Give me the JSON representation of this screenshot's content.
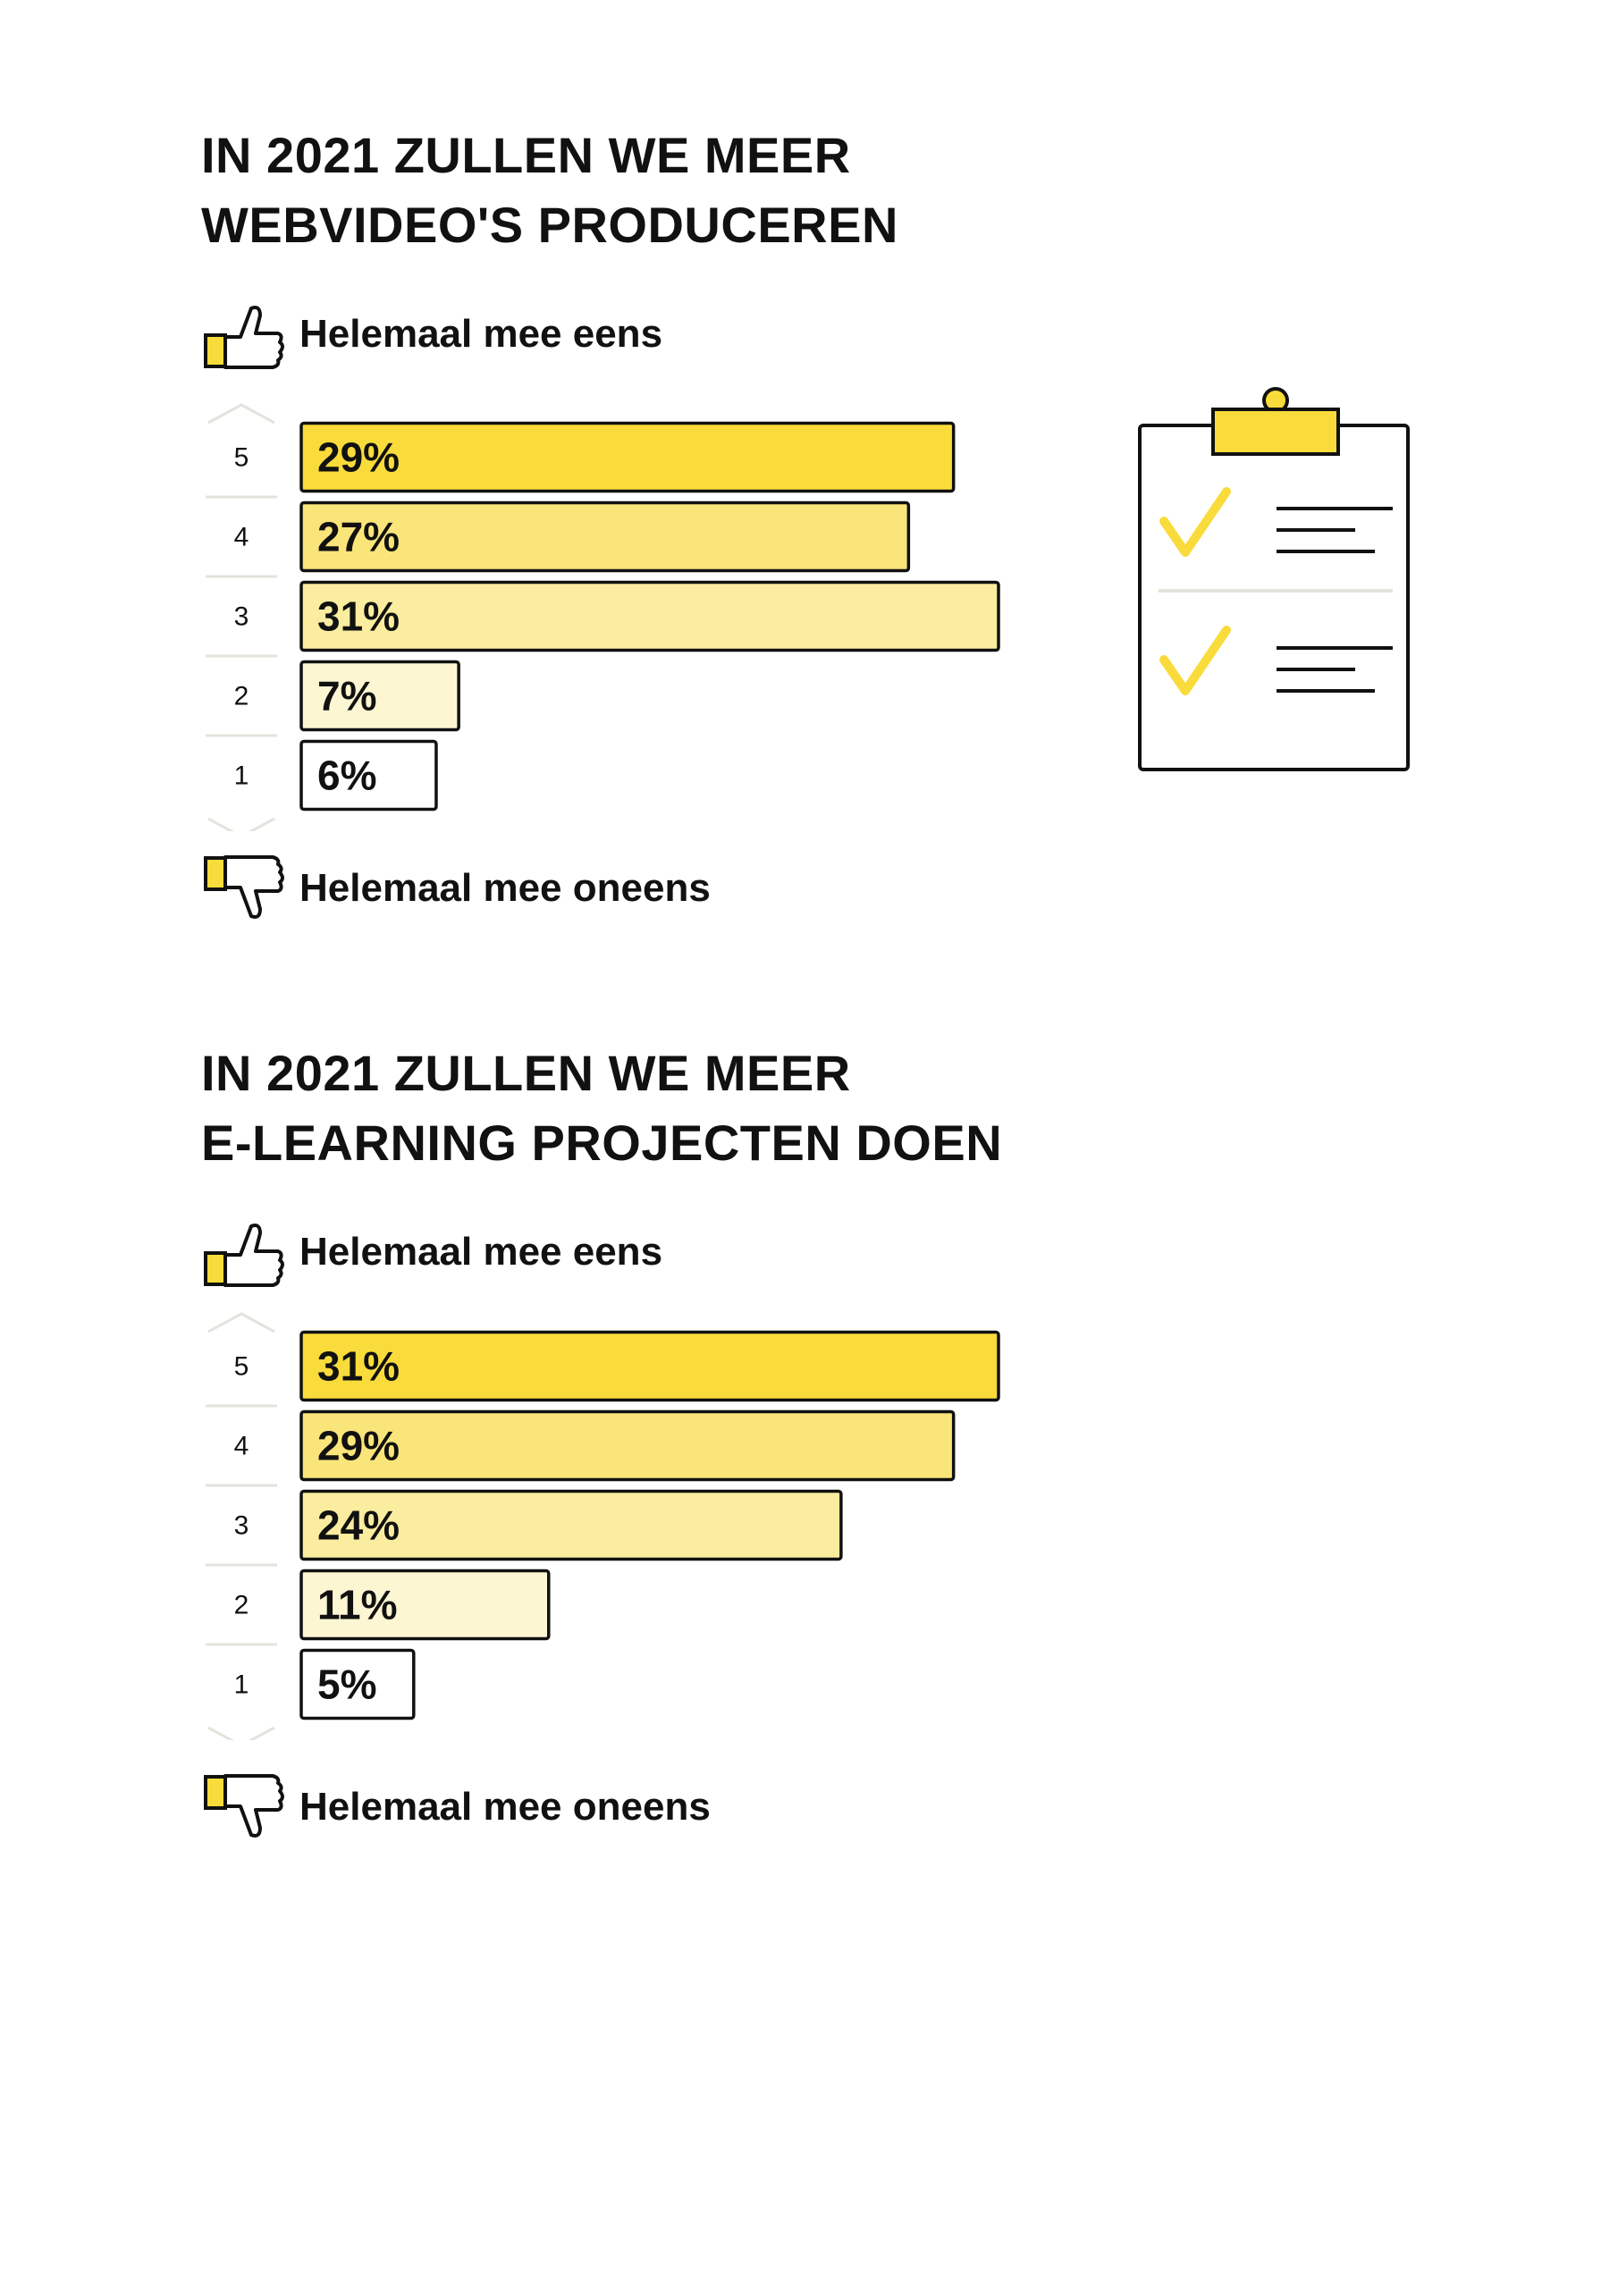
{
  "chart_data": [
    {
      "type": "bar",
      "orientation": "horizontal",
      "title_lines": [
        "IN 2021 ZULLEN WE MEER",
        "WEBVIDEO'S PRODUCEREN"
      ],
      "top_label": "Helemaal mee eens",
      "bottom_label": "Helemaal mee oneens",
      "categories": [
        "5",
        "4",
        "3",
        "2",
        "1"
      ],
      "values": [
        29,
        27,
        31,
        7,
        6
      ],
      "value_labels": [
        "29%",
        "27%",
        "31%",
        "7%",
        "6%"
      ],
      "xlim": [
        0,
        31
      ],
      "bar_colors": [
        "#F9DC3B",
        "#FAE57A",
        "#FBED9F",
        "#FDF6D2",
        "#FFFFFF"
      ]
    },
    {
      "type": "bar",
      "orientation": "horizontal",
      "title_lines": [
        "IN 2021 ZULLEN WE MEER",
        "E-LEARNING PROJECTEN DOEN"
      ],
      "top_label": "Helemaal mee eens",
      "bottom_label": "Helemaal mee oneens",
      "categories": [
        "5",
        "4",
        "3",
        "2",
        "1"
      ],
      "values": [
        31,
        29,
        24,
        11,
        5
      ],
      "value_labels": [
        "31%",
        "29%",
        "24%",
        "11%",
        "5%"
      ],
      "xlim": [
        0,
        31
      ],
      "bar_colors": [
        "#F9DC3B",
        "#FAE57A",
        "#FBED9F",
        "#FDF6D2",
        "#FFFFFF"
      ]
    }
  ],
  "icons": {
    "thumbs_up": "thumbs-up-icon",
    "thumbs_down": "thumbs-down-icon",
    "clipboard": "clipboard-checklist-icon"
  },
  "colors": {
    "accent": "#F9DC3B",
    "text": "#111111",
    "separator": "#E4E3DC"
  }
}
